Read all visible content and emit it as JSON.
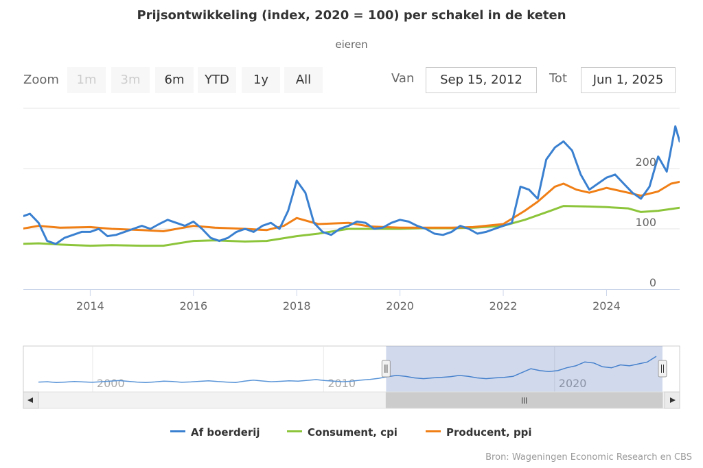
{
  "title": "Prijsontwikkeling (index, 2020 = 100) per schakel in de keten",
  "subtitle": "eieren",
  "zoom": {
    "label": "Zoom",
    "buttons": [
      {
        "label": "1m",
        "enabled": false
      },
      {
        "label": "3m",
        "enabled": false
      },
      {
        "label": "6m",
        "enabled": true
      },
      {
        "label": "YTD",
        "enabled": true
      },
      {
        "label": "1y",
        "enabled": true
      },
      {
        "label": "All",
        "enabled": true
      }
    ]
  },
  "range": {
    "from_label": "Van",
    "from_value": "Sep 15, 2012",
    "to_label": "Tot",
    "to_value": "Jun 1, 2025"
  },
  "credits": "Bron: Wageningen Economic Research en CBS",
  "colors": {
    "blue": "#3a80d0",
    "green": "#8cc43a",
    "orange": "#f07f16"
  },
  "chart_data": {
    "type": "line",
    "title": "Prijsontwikkeling (index, 2020 = 100) per schakel in de keten",
    "subtitle": "eieren",
    "xlim": [
      "2012-09-15",
      "2025-06-01"
    ],
    "ylim": [
      0,
      300
    ],
    "ytick_labels": [
      "0",
      "100",
      "200"
    ],
    "xtick_labels": [
      "2014",
      "2016",
      "2018",
      "2020",
      "2022",
      "2024"
    ],
    "grid": true,
    "legend": "bottom-center",
    "navigator": {
      "xtick_labels": [
        "2000",
        "2010",
        "2020"
      ],
      "range_start": "2012-09-15",
      "range_end": "2025-06-01",
      "range_lower": "1997-01-01",
      "range_upper": "2025-06-01"
    },
    "series": [
      {
        "name": "Af boerderij",
        "color": "#3a80d0",
        "x": [
          "2012-09",
          "2012-11",
          "2013-01",
          "2013-03",
          "2013-05",
          "2013-07",
          "2013-09",
          "2013-11",
          "2014-01",
          "2014-03",
          "2014-05",
          "2014-07",
          "2014-09",
          "2014-11",
          "2015-01",
          "2015-03",
          "2015-05",
          "2015-07",
          "2015-09",
          "2015-11",
          "2016-01",
          "2016-03",
          "2016-05",
          "2016-07",
          "2016-09",
          "2016-11",
          "2017-01",
          "2017-03",
          "2017-05",
          "2017-07",
          "2017-09",
          "2017-11",
          "2018-01",
          "2018-03",
          "2018-05",
          "2018-07",
          "2018-09",
          "2018-11",
          "2019-01",
          "2019-03",
          "2019-05",
          "2019-07",
          "2019-09",
          "2019-11",
          "2020-01",
          "2020-03",
          "2020-05",
          "2020-07",
          "2020-09",
          "2020-11",
          "2021-01",
          "2021-03",
          "2021-05",
          "2021-07",
          "2021-09",
          "2021-11",
          "2022-01",
          "2022-03",
          "2022-05",
          "2022-07",
          "2022-09",
          "2022-11",
          "2023-01",
          "2023-03",
          "2023-05",
          "2023-07",
          "2023-09",
          "2023-11",
          "2024-01",
          "2024-03",
          "2024-05",
          "2024-07",
          "2024-09",
          "2024-11",
          "2025-01",
          "2025-03",
          "2025-05",
          "2025-06"
        ],
        "values": [
          120,
          125,
          110,
          80,
          75,
          85,
          90,
          95,
          95,
          100,
          88,
          90,
          95,
          100,
          105,
          100,
          108,
          115,
          110,
          105,
          112,
          100,
          85,
          80,
          85,
          95,
          100,
          95,
          105,
          110,
          100,
          130,
          180,
          160,
          110,
          95,
          90,
          100,
          105,
          112,
          110,
          100,
          102,
          110,
          115,
          112,
          105,
          100,
          92,
          90,
          95,
          105,
          100,
          92,
          95,
          100,
          105,
          110,
          170,
          165,
          150,
          215,
          235,
          245,
          230,
          190,
          165,
          175,
          185,
          190,
          175,
          160,
          150,
          170,
          220,
          195,
          270,
          245
        ],
        "navigator_values": [
          90,
          92,
          88,
          90,
          93,
          91,
          89,
          92,
          95,
          98,
          94,
          90,
          88,
          91,
          95,
          93,
          89,
          91,
          94,
          97,
          93,
          90,
          88,
          95,
          100,
          96,
          92,
          94,
          97,
          95,
          99,
          103,
          98,
          95,
          92,
          95,
          100,
          104,
          110,
          118,
          125,
          120,
          112,
          108,
          112,
          115,
          118,
          125,
          120,
          112,
          108,
          112,
          115,
          120,
          140,
          160,
          150,
          145,
          150,
          165,
          175,
          195,
          190,
          170,
          165,
          180,
          175,
          185,
          195,
          225
        ]
      },
      {
        "name": "Consument, cpi",
        "color": "#8cc43a",
        "x": [
          "2012-09",
          "2013-01",
          "2013-06",
          "2014-01",
          "2014-06",
          "2015-01",
          "2015-06",
          "2016-01",
          "2016-06",
          "2017-01",
          "2017-06",
          "2018-01",
          "2018-06",
          "2019-01",
          "2019-06",
          "2020-01",
          "2020-06",
          "2021-01",
          "2021-06",
          "2022-01",
          "2022-06",
          "2022-12",
          "2023-03",
          "2023-09",
          "2024-01",
          "2024-06",
          "2024-09",
          "2025-01",
          "2025-06"
        ],
        "values": [
          75,
          76,
          74,
          72,
          73,
          72,
          72,
          80,
          81,
          79,
          80,
          88,
          92,
          100,
          100,
          100,
          101,
          101,
          102,
          105,
          115,
          130,
          138,
          137,
          136,
          134,
          128,
          130,
          135
        ]
      },
      {
        "name": "Producent, ppi",
        "color": "#f07f16",
        "x": [
          "2012-09",
          "2013-01",
          "2013-06",
          "2014-01",
          "2014-06",
          "2015-01",
          "2015-06",
          "2016-01",
          "2016-06",
          "2017-01",
          "2017-06",
          "2017-10",
          "2018-01",
          "2018-06",
          "2019-01",
          "2019-06",
          "2020-01",
          "2020-06",
          "2021-01",
          "2021-06",
          "2022-01",
          "2022-06",
          "2022-09",
          "2023-01",
          "2023-03",
          "2023-06",
          "2023-09",
          "2024-01",
          "2024-06",
          "2024-09",
          "2025-01",
          "2025-04",
          "2025-06"
        ],
        "values": [
          100,
          105,
          102,
          103,
          100,
          98,
          96,
          105,
          102,
          100,
          98,
          105,
          118,
          108,
          110,
          104,
          102,
          102,
          102,
          103,
          108,
          130,
          145,
          170,
          175,
          165,
          160,
          168,
          160,
          155,
          162,
          175,
          178
        ]
      }
    ]
  }
}
